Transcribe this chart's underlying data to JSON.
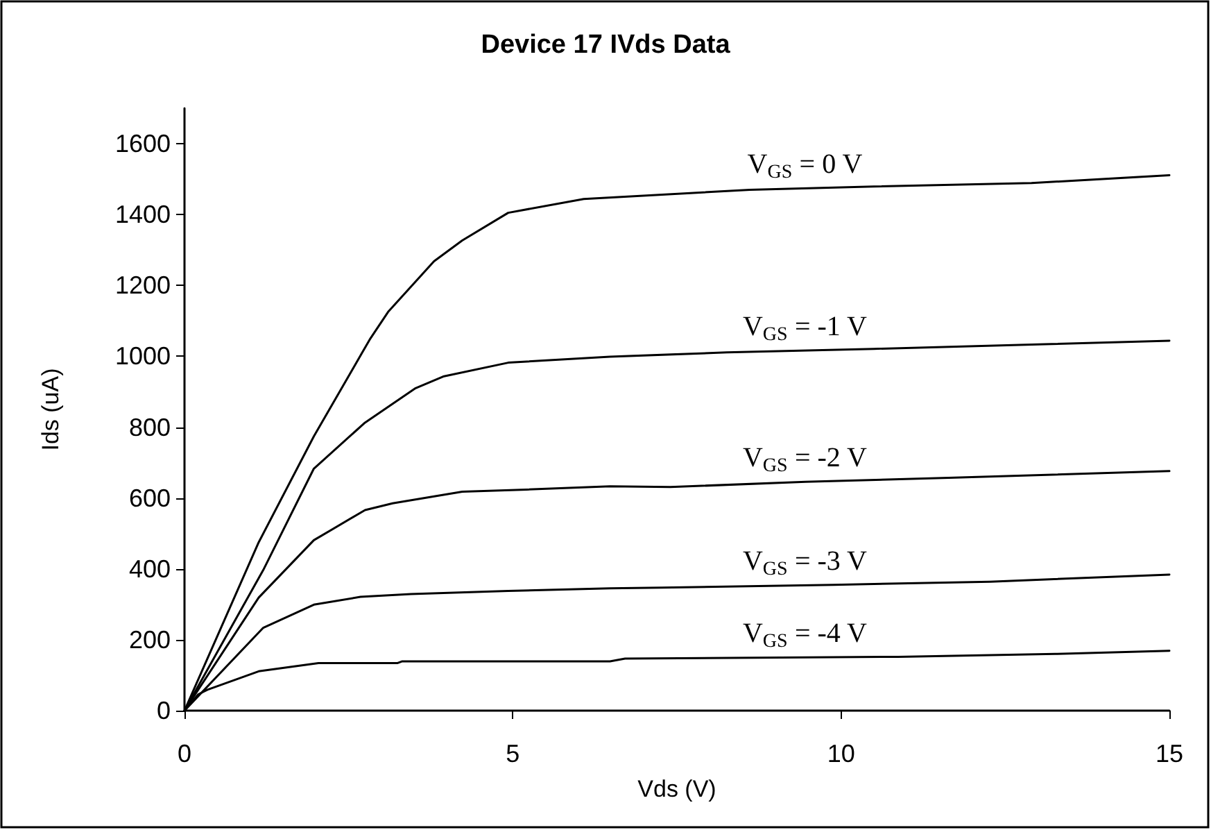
{
  "chart_data": {
    "type": "line",
    "title": "Device 17 IVds Data",
    "xlabel": "Vds (V)",
    "ylabel": "Ids (uA)",
    "xlim": [
      0,
      15
    ],
    "xticks": [
      0,
      5,
      10,
      15
    ],
    "ylim": [
      0,
      1700
    ],
    "yticks": [
      0,
      200,
      400,
      600,
      800,
      1000,
      1200,
      1400,
      1600
    ],
    "grid": false,
    "legend": false,
    "marker": "none",
    "line_style": "solid",
    "series": [
      {
        "name": "V$_{GS}$ = 0 V",
        "color": "#000000",
        "x": [
          0,
          1.13,
          1.97,
          2.82,
          3.1,
          3.8,
          4.23,
          4.93,
          6.08,
          8.61,
          10.5,
          12.9,
          15
        ],
        "values": [
          0,
          475,
          774,
          1047,
          1125,
          1268,
          1327,
          1405,
          1444,
          1470,
          1479,
          1489,
          1511
        ]
      },
      {
        "name": "V$_{GS}$ = -1 V",
        "color": "#000000",
        "x": [
          0,
          1.2,
          1.97,
          2.75,
          3.52,
          3.94,
          4.93,
          6.48,
          8.26,
          10.5,
          13.1,
          15
        ],
        "values": [
          0,
          397,
          683,
          813,
          910,
          943,
          982,
          999,
          1011,
          1021,
          1034,
          1044
        ]
      },
      {
        "name": "V$_{GS}$ = -2 V",
        "color": "#000000",
        "x": [
          0,
          1.13,
          1.97,
          2.75,
          3.17,
          4.23,
          5.21,
          6.48,
          7.4,
          9.46,
          11.64,
          15
        ],
        "values": [
          0,
          319,
          481,
          566,
          585,
          618,
          624,
          633,
          631,
          646,
          657,
          676
        ]
      },
      {
        "name": "V$_{GS}$ = -3 V",
        "color": "#000000",
        "x": [
          0,
          1.2,
          1.97,
          2.68,
          3.45,
          4.93,
          6.48,
          7.27,
          9.88,
          12.27,
          15
        ],
        "values": [
          0,
          234,
          299,
          321,
          329,
          338,
          345,
          347,
          355,
          364,
          384
        ]
      },
      {
        "name": "V$_{GS}$ = -4 V",
        "color": "#000000",
        "x": [
          0,
          0.21,
          0.35,
          1.13,
          2.04,
          3.24,
          3.31,
          6.48,
          6.71,
          10.87,
          13.26,
          15
        ],
        "values": [
          0,
          46,
          59,
          111,
          134,
          134,
          139,
          139,
          147,
          152,
          160,
          169
        ]
      }
    ]
  }
}
